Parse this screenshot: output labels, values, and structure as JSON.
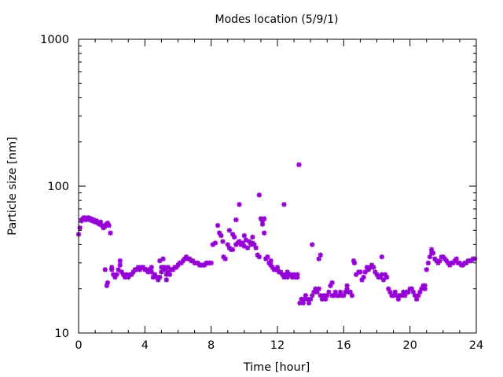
{
  "chart_data": {
    "type": "scatter",
    "title": "Modes location (5/9/1)",
    "xlabel": "Time [hour]",
    "ylabel": "Particle size [nm]",
    "xlim": [
      0,
      24
    ],
    "ylim": [
      10,
      1000
    ],
    "y_scale": "log",
    "grid": false,
    "legend": "none",
    "x_ticks": [
      0,
      4,
      8,
      12,
      16,
      20,
      24
    ],
    "x_tick_labels": [
      "0",
      "4",
      "8",
      "12",
      "16",
      "20",
      "24"
    ],
    "y_ticks": [
      10,
      100,
      1000
    ],
    "y_tick_labels": [
      "10",
      "100",
      "1000"
    ],
    "marker_color": "#9400d3",
    "series": [
      {
        "x": [
          0.0,
          0.08,
          0.17,
          0.25,
          0.33,
          0.42,
          0.5,
          0.58,
          0.67,
          0.75,
          0.83,
          0.92,
          1.0,
          1.08,
          1.17,
          1.25,
          1.33,
          1.42,
          1.5,
          1.58,
          1.67,
          1.75,
          1.83,
          1.92,
          1.6,
          1.7,
          1.75,
          2.0,
          2.1,
          2.2,
          2.3,
          2.4,
          2.5,
          2.6,
          2.7,
          2.8,
          2.9,
          3.0,
          3.1,
          3.2,
          3.3,
          3.4,
          3.5,
          3.6,
          3.7,
          3.8,
          3.9,
          4.0,
          4.1,
          4.2,
          4.3,
          4.4,
          4.5,
          4.6,
          4.7,
          4.8,
          4.9,
          5.0,
          5.1,
          5.2,
          5.3,
          5.4,
          5.5,
          5.6,
          5.7,
          5.8,
          5.9,
          6.0,
          6.1,
          6.2,
          6.3,
          6.4,
          6.5,
          6.6,
          6.7,
          6.8,
          6.9,
          7.0,
          7.1,
          7.2,
          7.3,
          7.4,
          7.5,
          7.6,
          7.7,
          7.8,
          7.9,
          8.0,
          4.9,
          5.0,
          5.1,
          5.2,
          5.3,
          5.4,
          2.0,
          2.5,
          4.4,
          8.1,
          8.25,
          8.4,
          8.5,
          8.6,
          8.75,
          8.85,
          9.0,
          9.1,
          9.2,
          9.3,
          9.4,
          9.5,
          9.6,
          9.7,
          9.8,
          9.9,
          10.0,
          10.1,
          10.2,
          10.3,
          10.4,
          10.5,
          10.6,
          10.7,
          10.8,
          10.9,
          11.0,
          11.1,
          11.2,
          11.3,
          11.4,
          11.5,
          11.6,
          11.7,
          11.8,
          11.9,
          12.0,
          12.1,
          12.2,
          12.3,
          12.4,
          12.5,
          12.6,
          12.7,
          12.8,
          12.9,
          13.0,
          13.1,
          13.2,
          9.1,
          9.7,
          10.9,
          12.4,
          13.3,
          11.1,
          8.7,
          9.3,
          9.5,
          10.0,
          10.5,
          11.2,
          11.6,
          12.0,
          12.6,
          13.2,
          13.35,
          13.45,
          13.55,
          13.6,
          13.7,
          13.8,
          13.9,
          14.0,
          14.1,
          14.2,
          14.3,
          14.4,
          14.5,
          14.6,
          14.7,
          14.8,
          14.9,
          15.0,
          15.1,
          15.2,
          15.3,
          15.4,
          15.5,
          15.6,
          15.7,
          15.8,
          15.9,
          16.0,
          16.1,
          16.2,
          16.3,
          16.4,
          16.5,
          16.6,
          14.1,
          14.5,
          14.6,
          15.3,
          16.2,
          16.65,
          16.75,
          16.9,
          17.0,
          17.1,
          17.2,
          17.3,
          17.4,
          17.5,
          17.6,
          17.7,
          17.8,
          17.9,
          18.0,
          18.1,
          18.2,
          18.3,
          18.4,
          18.5,
          18.6,
          18.7,
          18.8,
          18.9,
          19.0,
          19.1,
          19.2,
          19.3,
          19.4,
          19.5,
          19.6,
          19.7,
          19.8,
          19.9,
          20.0,
          20.1,
          20.2,
          20.3,
          20.4,
          20.5,
          20.6,
          20.7,
          20.8,
          20.9,
          21.0,
          21.1,
          21.2,
          21.3,
          21.4,
          21.5,
          21.6,
          21.7,
          21.8,
          21.9,
          22.0,
          22.1,
          22.2,
          22.3,
          22.4,
          22.5,
          22.6,
          22.7,
          22.8,
          22.9,
          23.0,
          23.1,
          23.2,
          23.3,
          23.4,
          23.5,
          23.6,
          23.7,
          23.8,
          23.9,
          18.3,
          20.9,
          21.3
        ],
        "y": [
          47,
          52,
          58,
          60,
          61,
          59,
          60,
          61,
          59,
          60,
          58,
          59,
          57,
          58,
          56,
          55,
          57,
          54,
          52,
          53,
          55,
          56,
          54,
          48,
          27,
          21,
          22,
          28,
          25,
          24,
          25,
          27,
          31,
          26,
          25,
          24,
          25,
          24,
          25,
          25,
          26,
          27,
          27,
          28,
          27,
          28,
          28,
          27,
          27,
          26,
          27,
          26,
          24,
          25,
          24,
          23,
          24,
          26,
          28,
          27,
          25,
          26,
          25,
          27,
          27,
          28,
          28,
          29,
          30,
          30,
          31,
          32,
          33,
          32,
          32,
          31,
          31,
          30,
          30,
          30,
          29,
          29,
          29,
          29,
          30,
          30,
          30,
          30,
          31,
          28,
          32,
          28,
          23,
          28,
          27,
          29,
          28,
          40,
          41,
          54,
          48,
          46,
          33,
          32,
          40,
          38,
          37,
          47,
          45,
          40,
          41,
          42,
          40,
          41,
          39,
          43,
          38,
          42,
          40,
          41,
          40,
          38,
          34,
          33,
          60,
          55,
          48,
          32,
          33,
          30,
          29,
          28,
          27,
          27,
          27,
          26,
          26,
          25,
          24,
          25,
          24,
          25,
          25,
          24,
          25,
          24,
          25,
          50,
          75,
          87,
          75,
          140,
          58,
          42,
          37,
          59,
          46,
          45,
          60,
          31,
          28,
          26,
          24,
          16,
          17,
          16,
          17,
          18,
          17,
          16,
          17,
          18,
          19,
          20,
          19,
          20,
          18,
          17,
          18,
          17,
          18,
          19,
          21,
          18,
          18,
          19,
          18,
          18,
          19,
          18,
          18,
          19,
          20,
          19,
          19,
          18,
          31,
          40,
          32,
          34,
          22,
          21,
          30,
          25,
          26,
          26,
          23,
          24,
          26,
          28,
          27,
          28,
          29,
          28,
          26,
          25,
          24,
          24,
          25,
          23,
          25,
          24,
          20,
          19,
          18,
          18,
          19,
          18,
          17,
          18,
          18,
          19,
          18,
          19,
          19,
          20,
          20,
          19,
          18,
          17,
          18,
          19,
          20,
          21,
          20,
          27,
          30,
          33,
          35,
          35,
          32,
          31,
          30,
          31,
          33,
          33,
          32,
          31,
          30,
          29,
          30,
          30,
          31,
          32,
          30,
          30,
          29,
          29,
          30,
          30,
          31,
          31,
          31,
          32,
          32,
          33,
          21,
          37
        ]
      }
    ]
  }
}
